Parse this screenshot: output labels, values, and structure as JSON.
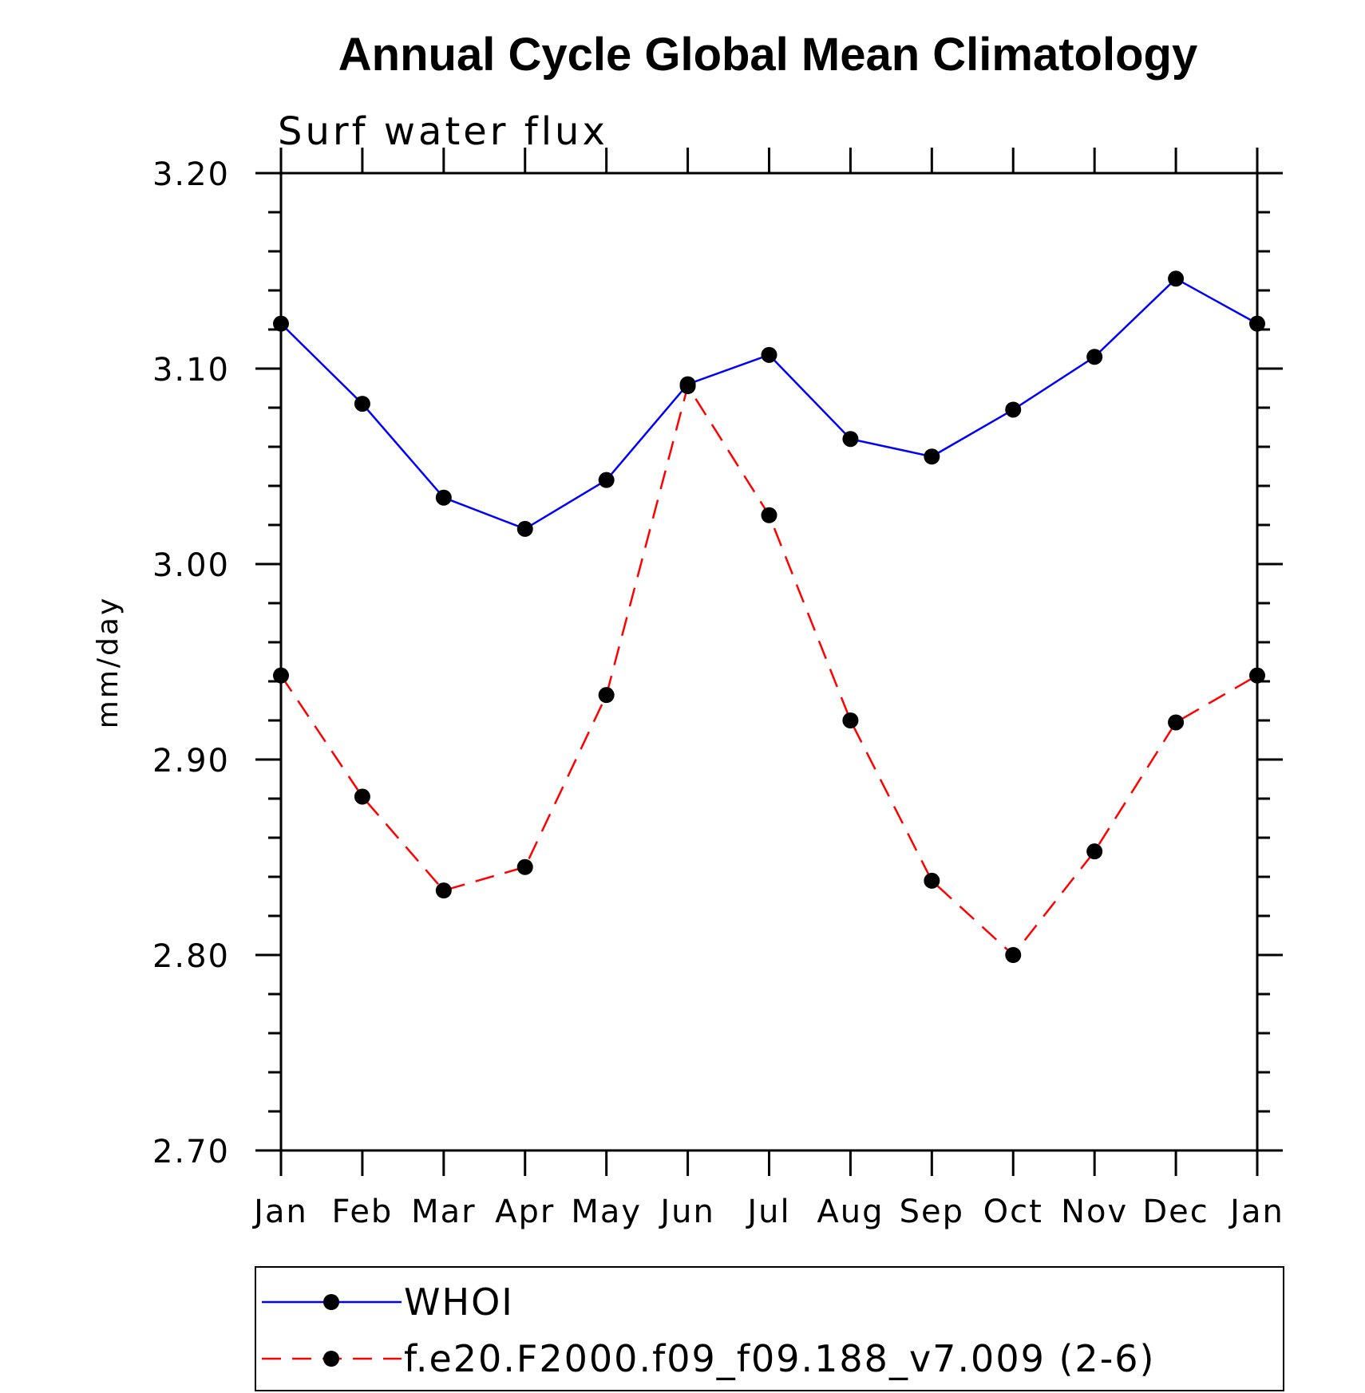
{
  "chart_data": {
    "type": "line",
    "title": "Annual Cycle Global Mean Climatology",
    "subtitle": "Surf water flux",
    "ylabel": "mm/day",
    "xlabel": "",
    "categories": [
      "Jan",
      "Feb",
      "Mar",
      "Apr",
      "May",
      "Jun",
      "Jul",
      "Aug",
      "Sep",
      "Oct",
      "Nov",
      "Dec",
      "Jan"
    ],
    "ylim": [
      2.7,
      3.2
    ],
    "yticks": [
      "2.70",
      "2.80",
      "2.90",
      "3.00",
      "3.10",
      "3.20"
    ],
    "grid": false,
    "legend_position": "bottom",
    "series": [
      {
        "name": "WHOI",
        "color": "#0000ff",
        "line_style": "solid",
        "values": [
          3.123,
          3.082,
          3.034,
          3.018,
          3.043,
          3.092,
          3.107,
          3.064,
          3.055,
          3.079,
          3.106,
          3.146,
          3.123
        ]
      },
      {
        "name": "f.e20.F2000.f09_f09.188_v7.009 (2-6)",
        "color": "#ff0000",
        "line_style": "dashed",
        "values": [
          2.943,
          2.881,
          2.833,
          2.845,
          2.933,
          3.091,
          3.025,
          2.92,
          2.838,
          2.8,
          2.853,
          2.919,
          2.943
        ]
      }
    ]
  }
}
